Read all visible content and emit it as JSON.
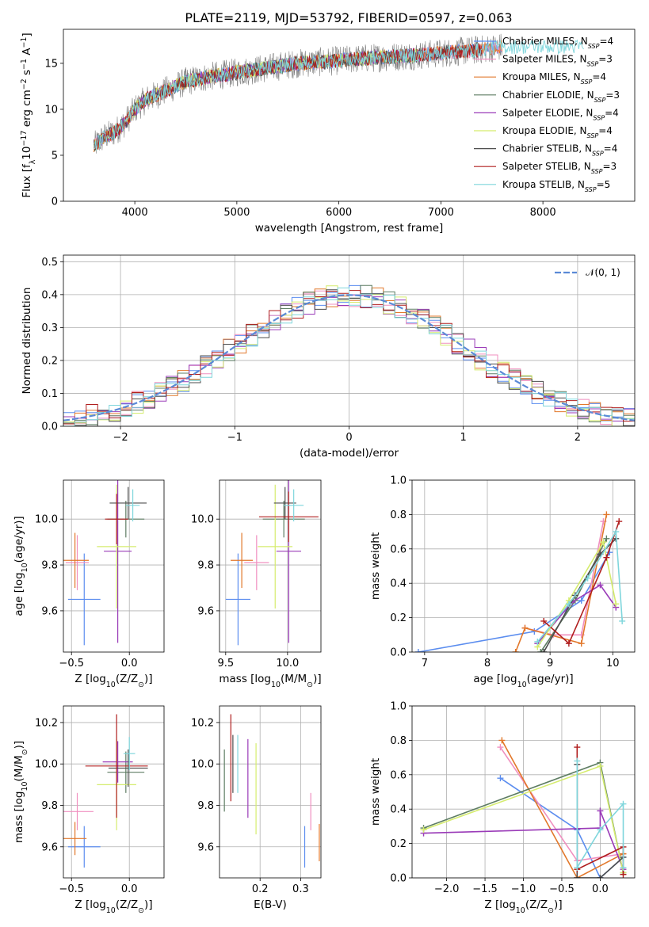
{
  "title": "PLATE=2119, MJD=53792, FIBERID=0597, z=0.063",
  "models": [
    {
      "name": "Chabrier MILES, N$_{SSP}$=4",
      "label": "Chabrier MILES, N",
      "nssp": "4",
      "color": "#5b8def"
    },
    {
      "name": "Salpeter MILES, N$_{SSP}$=3",
      "label": "Salpeter MILES, N",
      "nssp": "3",
      "color": "#f08fbf"
    },
    {
      "name": "Kroupa MILES, N$_{SSP}$=4",
      "label": "Kroupa MILES, N",
      "nssp": "4",
      "color": "#e2782b"
    },
    {
      "name": "Chabrier ELODIE, N$_{SSP}$=3",
      "label": "Chabrier ELODIE, N",
      "nssp": "3",
      "color": "#5e7d63"
    },
    {
      "name": "Salpeter ELODIE, N$_{SSP}$=4",
      "label": "Salpeter ELODIE, N",
      "nssp": "4",
      "color": "#9a3bb8"
    },
    {
      "name": "Kroupa ELODIE, N$_{SSP}$=4",
      "label": "Kroupa ELODIE, N",
      "nssp": "4",
      "color": "#d5ec6e"
    },
    {
      "name": "Chabrier STELIB, N$_{SSP}$=4",
      "label": "Chabrier STELIB, N",
      "nssp": "4",
      "color": "#4d4d4d"
    },
    {
      "name": "Salpeter STELIB, N$_{SSP}$=3",
      "label": "Salpeter STELIB, N",
      "nssp": "3",
      "color": "#b01e1e"
    },
    {
      "name": "Kroupa STELIB, N$_{SSP}$=5",
      "label": "Kroupa STELIB, N",
      "nssp": "5",
      "color": "#7fd6dc"
    }
  ],
  "chart_data": [
    {
      "id": "spectrum",
      "type": "line",
      "xlabel": "wavelength [Angstrom, rest frame]",
      "ylabel": "Flux [f$_\\lambda$10$^{-17}$ erg cm$^{-2}$ s$^{-1}$ A$^{-1}$]",
      "xlim": [
        3300,
        8900
      ],
      "ylim": [
        0,
        18.7
      ],
      "xticks": [
        4000,
        5000,
        6000,
        7000,
        8000
      ],
      "yticks": [
        0,
        5,
        10,
        15
      ],
      "data_trace": {
        "name": "data",
        "color": "#808080",
        "x": [
          3600,
          3700,
          3800,
          3900,
          4000,
          4100,
          4200,
          4300,
          4400,
          4500,
          4700,
          5000,
          5300,
          5600,
          5900,
          6200,
          6500,
          6800,
          7100,
          7400,
          7600
        ],
        "y": [
          6.0,
          7.0,
          7.5,
          8.5,
          10.0,
          11.0,
          11.5,
          12.0,
          12.5,
          13.0,
          13.5,
          14.0,
          14.5,
          15.0,
          15.2,
          15.5,
          15.7,
          15.9,
          16.2,
          16.5,
          16.8
        ]
      },
      "model_range": {
        "Chabrier MILES": [
          3600,
          7600
        ],
        "Salpeter MILES": [
          3600,
          7600
        ],
        "Kroupa MILES": [
          3600,
          7600
        ],
        "Chabrier ELODIE": [
          3600,
          6800
        ],
        "Salpeter ELODIE": [
          3600,
          6800
        ],
        "Kroupa ELODIE": [
          3600,
          6800
        ],
        "Chabrier STELIB": [
          3600,
          7400
        ],
        "Salpeter STELIB": [
          3600,
          7400
        ],
        "Kroupa STELIB": [
          3600,
          8400
        ]
      },
      "legend": "upper right"
    },
    {
      "id": "residuals",
      "type": "histogram",
      "xlabel": "(data-model)/error",
      "ylabel": "Normed distribution",
      "xlim": [
        -2.5,
        2.5
      ],
      "ylim": [
        0,
        0.52
      ],
      "xticks": [
        -2,
        -1,
        0,
        1,
        2
      ],
      "yticks": [
        0.0,
        0.1,
        0.2,
        0.3,
        0.4,
        0.5
      ],
      "bin_width": 0.1,
      "reference_curve": {
        "name": "$\\mathcal{N}(0,1)$",
        "label": "𝒩(0, 1)",
        "style": "dashed",
        "color": "#5b8ad6"
      },
      "grid": true,
      "legend": "upper right"
    },
    {
      "id": "age_vs_Z",
      "type": "errorbar",
      "xlabel": "Z [log$_{10}$(Z/Z$_\\odot$)]",
      "ylabel": "age [log$_{10}$(age/yr)]",
      "xlim": [
        -0.57,
        0.3
      ],
      "ylim": [
        9.42,
        10.17
      ],
      "xticks": [
        -0.5,
        0.0
      ],
      "yticks": [
        9.6,
        9.8,
        10.0
      ],
      "points": [
        {
          "model": "Chabrier MILES",
          "x": -0.39,
          "xerr": 0.14,
          "y": 9.65,
          "yerr": 0.2
        },
        {
          "model": "Salpeter MILES",
          "x": -0.45,
          "xerr": 0.1,
          "y": 9.81,
          "yerr": 0.12
        },
        {
          "model": "Kroupa MILES",
          "x": -0.47,
          "xerr": 0.12,
          "y": 9.82,
          "yerr": 0.12
        },
        {
          "model": "Chabrier ELODIE",
          "x": -0.03,
          "xerr": 0.16,
          "y": 10.0,
          "yerr": 0.08
        },
        {
          "model": "Salpeter ELODIE",
          "x": -0.1,
          "xerr": 0.12,
          "y": 9.86,
          "yerr": 0.4
        },
        {
          "model": "Kroupa ELODIE",
          "x": -0.11,
          "xerr": 0.17,
          "y": 9.88,
          "yerr": 0.27
        },
        {
          "model": "Chabrier STELIB",
          "x": -0.01,
          "xerr": 0.16,
          "y": 10.07,
          "yerr": 0.07
        },
        {
          "model": "Salpeter STELIB",
          "x": -0.11,
          "xerr": 0.1,
          "y": 10.0,
          "yerr": 0.11
        },
        {
          "model": "Kroupa STELIB",
          "x": 0.03,
          "xerr": 0.06,
          "y": 10.06,
          "yerr": 0.07
        }
      ]
    },
    {
      "id": "age_vs_mass",
      "type": "errorbar",
      "xlabel": "mass [log$_{10}$(M/M$_\\odot$)]",
      "ylabel": "",
      "xlim": [
        9.45,
        10.27
      ],
      "ylim": [
        9.42,
        10.17
      ],
      "xticks": [
        9.5,
        10.0
      ],
      "yticks": [
        9.6,
        9.8,
        10.0
      ],
      "points": [
        {
          "model": "Chabrier MILES",
          "x": 9.6,
          "xerr": 0.1,
          "y": 9.65,
          "yerr": 0.2
        },
        {
          "model": "Salpeter MILES",
          "x": 9.75,
          "xerr": 0.1,
          "y": 9.81,
          "yerr": 0.12
        },
        {
          "model": "Kroupa MILES",
          "x": 9.63,
          "xerr": 0.09,
          "y": 9.82,
          "yerr": 0.12
        },
        {
          "model": "Chabrier ELODIE",
          "x": 9.97,
          "xerr": 0.17,
          "y": 10.0,
          "yerr": 0.08
        },
        {
          "model": "Salpeter ELODIE",
          "x": 10.01,
          "xerr": 0.1,
          "y": 9.86,
          "yerr": 0.4
        },
        {
          "model": "Kroupa ELODIE",
          "x": 9.9,
          "xerr": 0.14,
          "y": 9.88,
          "yerr": 0.27
        },
        {
          "model": "Chabrier STELIB",
          "x": 9.98,
          "xerr": 0.09,
          "y": 10.07,
          "yerr": 0.07
        },
        {
          "model": "Salpeter STELIB",
          "x": 10.01,
          "xerr": 0.24,
          "y": 10.01,
          "yerr": 0.11
        },
        {
          "model": "Kroupa STELIB",
          "x": 10.05,
          "xerr": 0.08,
          "y": 10.06,
          "yerr": 0.07
        }
      ]
    },
    {
      "id": "weights_vs_age",
      "type": "line",
      "xlabel": "age [log$_{10}$(age/yr)]",
      "ylabel": "mass weight",
      "xlim": [
        6.8,
        10.35
      ],
      "ylim": [
        0,
        1
      ],
      "xticks": [
        7,
        8,
        9,
        10
      ],
      "yticks": [
        0.0,
        0.2,
        0.4,
        0.6,
        0.8,
        1.0
      ],
      "grid": true,
      "series": [
        {
          "model": "Chabrier MILES",
          "x": [
            6.9,
            8.75,
            9.5,
            9.95
          ],
          "y": [
            0.0,
            0.12,
            0.3,
            0.58
          ]
        },
        {
          "model": "Salpeter MILES",
          "x": [
            8.6,
            9.05,
            9.5,
            9.85
          ],
          "y": [
            0.14,
            0.1,
            0.1,
            0.76
          ]
        },
        {
          "model": "Kroupa MILES",
          "x": [
            8.45,
            8.6,
            9.5,
            9.9
          ],
          "y": [
            0.0,
            0.14,
            0.05,
            0.8
          ]
        },
        {
          "model": "Chabrier ELODIE",
          "x": [
            8.85,
            9.4,
            9.9
          ],
          "y": [
            0.0,
            0.3,
            0.66
          ]
        },
        {
          "model": "Salpeter ELODIE",
          "x": [
            8.8,
            9.35,
            9.8,
            10.05
          ],
          "y": [
            0.05,
            0.29,
            0.39,
            0.26
          ]
        },
        {
          "model": "Kroupa ELODIE",
          "x": [
            8.8,
            9.3,
            9.85,
            10.05
          ],
          "y": [
            0.03,
            0.3,
            0.64,
            0.28
          ]
        },
        {
          "model": "Chabrier STELIB",
          "x": [
            8.9,
            9.4,
            9.8,
            10.05
          ],
          "y": [
            0.0,
            0.33,
            0.57,
            0.66
          ]
        },
        {
          "model": "Salpeter STELIB",
          "x": [
            8.9,
            9.3,
            9.9,
            10.1
          ],
          "y": [
            0.18,
            0.05,
            0.55,
            0.76
          ]
        },
        {
          "model": "Kroupa STELIB",
          "x": [
            8.8,
            9.3,
            9.6,
            10.05,
            10.15
          ],
          "y": [
            0.06,
            0.28,
            0.43,
            0.7,
            0.18
          ]
        }
      ]
    },
    {
      "id": "mass_vs_Z",
      "type": "errorbar",
      "xlabel": "Z [log$_{10}$(Z/Z$_\\odot$)]",
      "ylabel": "mass [log$_{10}$(M/M$_\\odot$)]",
      "xlim": [
        -0.57,
        0.3
      ],
      "ylim": [
        9.45,
        10.28
      ],
      "xticks": [
        -0.5,
        0.0
      ],
      "yticks": [
        9.6,
        9.8,
        10.0,
        10.2
      ],
      "points": [
        {
          "model": "Chabrier MILES",
          "x": -0.39,
          "xerr": 0.14,
          "y": 9.6,
          "yerr": 0.1
        },
        {
          "model": "Salpeter MILES",
          "x": -0.45,
          "xerr": 0.14,
          "y": 9.77,
          "yerr": 0.09
        },
        {
          "model": "Kroupa MILES",
          "x": -0.47,
          "xerr": 0.1,
          "y": 9.64,
          "yerr": 0.08
        },
        {
          "model": "Chabrier ELODIE",
          "x": -0.03,
          "xerr": 0.16,
          "y": 9.96,
          "yerr": 0.1
        },
        {
          "model": "Salpeter ELODIE",
          "x": -0.1,
          "xerr": 0.13,
          "y": 10.01,
          "yerr": 0.1
        },
        {
          "model": "Kroupa ELODIE",
          "x": -0.11,
          "xerr": 0.17,
          "y": 9.9,
          "yerr": 0.22
        },
        {
          "model": "Chabrier STELIB",
          "x": -0.01,
          "xerr": 0.17,
          "y": 9.98,
          "yerr": 0.09
        },
        {
          "model": "Salpeter STELIB",
          "x": -0.11,
          "xerr": 0.27,
          "y": 9.99,
          "yerr": 0.25
        },
        {
          "model": "Kroupa STELIB",
          "x": 0.0,
          "xerr": 0.05,
          "y": 10.05,
          "yerr": 0.08
        }
      ]
    },
    {
      "id": "mass_vs_ebv",
      "type": "errorbar",
      "xlabel": "E(B-V)",
      "ylabel": "",
      "xlim": [
        0.1,
        0.35
      ],
      "ylim": [
        9.45,
        10.28
      ],
      "xticks": [
        0.2,
        0.3
      ],
      "yticks": [
        9.6,
        9.8,
        10.0,
        10.2
      ],
      "points": [
        {
          "model": "Chabrier MILES",
          "x": 0.31,
          "y": 9.6,
          "yerr": 0.1
        },
        {
          "model": "Salpeter MILES",
          "x": 0.325,
          "y": 9.77,
          "yerr": 0.09
        },
        {
          "model": "Kroupa MILES",
          "x": 0.346,
          "y": 9.62,
          "yerr": 0.09
        },
        {
          "model": "Chabrier ELODIE",
          "x": 0.112,
          "y": 9.92,
          "yerr": 0.15
        },
        {
          "model": "Salpeter ELODIE",
          "x": 0.17,
          "y": 9.93,
          "yerr": 0.19
        },
        {
          "model": "Kroupa ELODIE",
          "x": 0.19,
          "y": 9.88,
          "yerr": 0.22
        },
        {
          "model": "Chabrier STELIB",
          "x": 0.133,
          "y": 10.0,
          "yerr": 0.14
        },
        {
          "model": "Salpeter STELIB",
          "x": 0.128,
          "y": 10.03,
          "yerr": 0.21
        },
        {
          "model": "Kroupa STELIB",
          "x": 0.145,
          "y": 10.0,
          "yerr": 0.14
        }
      ]
    },
    {
      "id": "weights_vs_Z",
      "type": "line",
      "xlabel": "Z [log$_{10}$(Z/Z$_\\odot$)]",
      "ylabel": "mass weight",
      "xlim": [
        -2.45,
        0.45
      ],
      "ylim": [
        0,
        1
      ],
      "xticks": [
        -2.0,
        -1.5,
        -1.0,
        -0.5,
        0.0
      ],
      "yticks": [
        0.0,
        0.2,
        0.4,
        0.6,
        0.8,
        1.0
      ],
      "grid": true,
      "series": [
        {
          "model": "Chabrier MILES",
          "x": [
            -1.3,
            -0.3,
            0.0,
            0.3
          ],
          "y": [
            0.58,
            0.28,
            0.0,
            0.12
          ]
        },
        {
          "model": "Salpeter MILES",
          "x": [
            -1.3,
            -0.3,
            0.3
          ],
          "y": [
            0.76,
            0.1,
            0.14
          ]
        },
        {
          "model": "Kroupa MILES",
          "x": [
            -1.28,
            -0.3,
            0.3
          ],
          "y": [
            0.8,
            0.0,
            0.14
          ]
        },
        {
          "model": "Chabrier ELODIE",
          "x": [
            -2.3,
            0.0,
            0.3
          ],
          "y": [
            0.29,
            0.67,
            0.03
          ]
        },
        {
          "model": "Salpeter ELODIE",
          "x": [
            -2.3,
            0.0,
            0.0,
            0.3
          ],
          "y": [
            0.26,
            0.29,
            0.39,
            0.05
          ]
        },
        {
          "model": "Kroupa ELODIE",
          "x": [
            -2.3,
            0.0,
            0.3
          ],
          "y": [
            0.28,
            0.65,
            0.03
          ]
        },
        {
          "model": "Chabrier STELIB",
          "x": [
            -0.3,
            -0.3,
            0.0,
            0.3
          ],
          "y": [
            0.66,
            0.0,
            0.0,
            0.12
          ]
        },
        {
          "model": "Salpeter STELIB",
          "x": [
            -0.3,
            -0.3,
            0.3,
            0.3
          ],
          "y": [
            0.76,
            0.05,
            0.18,
            0.02
          ]
        },
        {
          "model": "Kroupa STELIB",
          "x": [
            -0.3,
            -0.3,
            0.0,
            0.3,
            0.3
          ],
          "y": [
            0.68,
            0.06,
            0.28,
            0.43,
            0.06
          ]
        }
      ]
    }
  ]
}
